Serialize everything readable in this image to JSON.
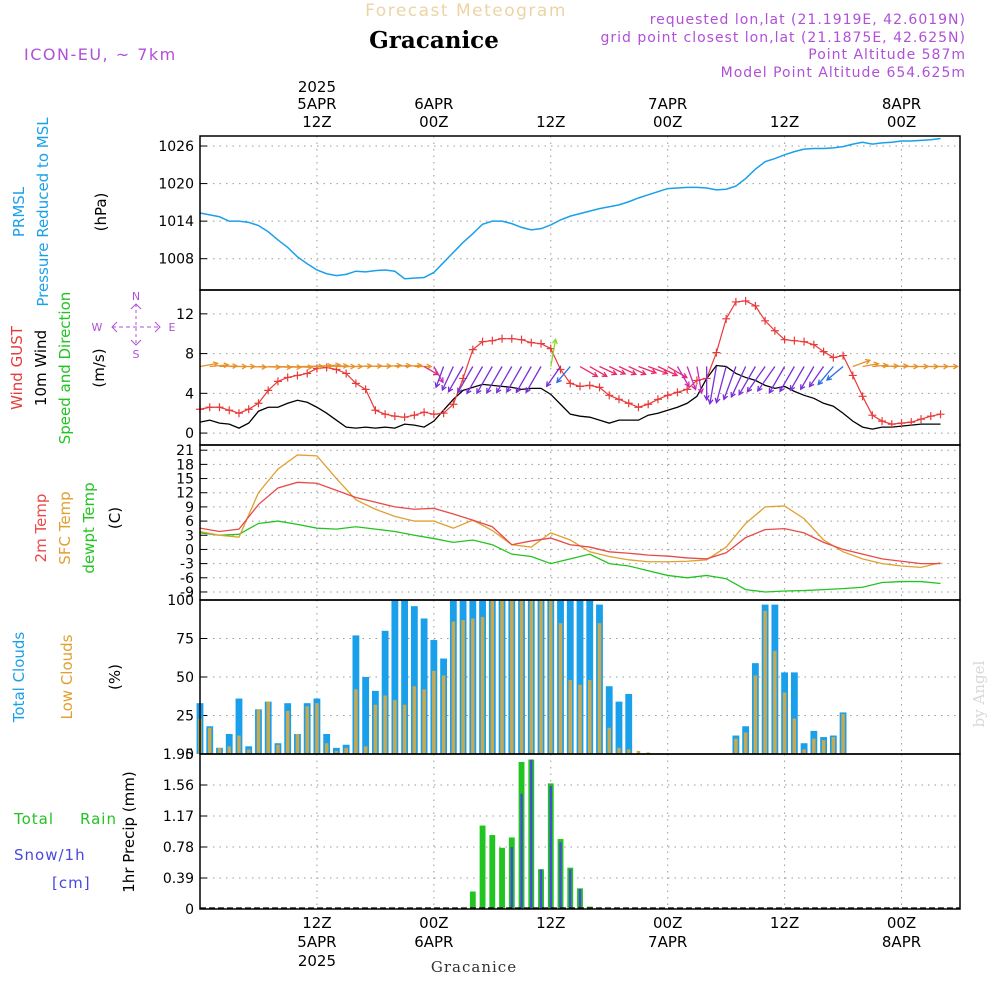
{
  "header": {
    "top_label": "Forecast Meteogram",
    "location": "Gracanice",
    "model": "ICON-EU, ~ 7km",
    "requested": "requested lon,lat (21.1919E, 42.6019N)",
    "grid_point": "grid point closest lon,lat (21.1875E, 42.625N)",
    "point_altitude": "Point Altitude 587m",
    "model_altitude": "Model Point Altitude 654.625m",
    "footer_location": "Gracanice",
    "watermark": "by Angel"
  },
  "colors": {
    "prmsl": "#1aa0ea",
    "gust": "#e83a3a",
    "wind": "#000000",
    "temp2m": "#e84a4a",
    "sfc": "#e0a030",
    "dewpt": "#22c422",
    "total_clouds": "#1aa0ea",
    "low_clouds": "#c8a850",
    "rain": "#22c422",
    "snow": "#4848e0",
    "purple": "#b050d8",
    "tan": "#e8c890"
  },
  "time_axis": {
    "top_year": "2025",
    "top_labels": [
      {
        "h": 12,
        "date": "5APR",
        "hour": "12Z"
      },
      {
        "h": 24,
        "date": "6APR",
        "hour": "00Z"
      },
      {
        "h": 36,
        "date": "",
        "hour": "12Z"
      },
      {
        "h": 48,
        "date": "7APR",
        "hour": "00Z"
      },
      {
        "h": 60,
        "date": "",
        "hour": "12Z"
      },
      {
        "h": 72,
        "date": "8APR",
        "hour": "00Z"
      }
    ],
    "bottom_labels": [
      {
        "h": 12,
        "hour": "12Z",
        "date": "5APR",
        "year": "2025"
      },
      {
        "h": 24,
        "hour": "00Z",
        "date": "6APR",
        "year": ""
      },
      {
        "h": 36,
        "hour": "12Z",
        "date": "",
        "year": ""
      },
      {
        "h": 48,
        "hour": "00Z",
        "date": "7APR",
        "year": ""
      },
      {
        "h": 60,
        "hour": "12Z",
        "date": "",
        "year": ""
      },
      {
        "h": 72,
        "hour": "00Z",
        "date": "8APR",
        "year": ""
      }
    ]
  },
  "chart_data": [
    {
      "id": "prmsl",
      "type": "line",
      "title": "PRMSL Pressure Reduced to MSL",
      "ylabel": "(hPa)",
      "legend": [
        "PRMSL",
        "Pressure Reduced to MSL"
      ],
      "ylim": [
        1003,
        1027.6
      ],
      "yticks": [
        1008,
        1014,
        1020,
        1026
      ],
      "x_hours": [
        0,
        2,
        3,
        4,
        5,
        6,
        7,
        8,
        9,
        10,
        11,
        12,
        13,
        14,
        15,
        16,
        17,
        18,
        19,
        20,
        21,
        22,
        23,
        24,
        25,
        26,
        27,
        28,
        29,
        30,
        31,
        32,
        33,
        34,
        35,
        36,
        37,
        38,
        39,
        40,
        41,
        42,
        43,
        44,
        45,
        46,
        47,
        48,
        49,
        50,
        51,
        52,
        53,
        54,
        55,
        56,
        57,
        58,
        59,
        60,
        61,
        62,
        63,
        64,
        65,
        66,
        67,
        68,
        69,
        70,
        71,
        72,
        73,
        74,
        75,
        76
      ],
      "values": [
        1015.3,
        1014.7,
        1014.0,
        1014.0,
        1013.8,
        1013.3,
        1012.3,
        1011.0,
        1009.8,
        1008.3,
        1007.2,
        1006.2,
        1005.6,
        1005.3,
        1005.5,
        1006.0,
        1005.9,
        1006.1,
        1006.2,
        1006.0,
        1004.8,
        1004.9,
        1005.0,
        1005.8,
        1007.4,
        1009.0,
        1010.6,
        1012.0,
        1013.5,
        1014.0,
        1014.0,
        1013.6,
        1013.0,
        1012.6,
        1012.8,
        1013.4,
        1014.2,
        1014.8,
        1015.2,
        1015.6,
        1016.0,
        1016.3,
        1016.6,
        1017.1,
        1017.7,
        1018.2,
        1018.7,
        1019.2,
        1019.3,
        1019.4,
        1019.4,
        1019.3,
        1019.0,
        1019.1,
        1019.6,
        1020.8,
        1022.3,
        1023.5,
        1024.0,
        1024.6,
        1025.1,
        1025.5,
        1025.6,
        1025.6,
        1025.7,
        1025.9,
        1026.3,
        1026.6,
        1026.3,
        1026.5,
        1026.6,
        1026.8,
        1026.8,
        1026.9,
        1027.0,
        1027.2
      ]
    },
    {
      "id": "wind",
      "type": "line",
      "title": "Wind GUST, 10m Wind Speed and Direction",
      "ylabel": "(m/s)",
      "legend": [
        "Wind GUST",
        "10m Wind",
        "Speed and Direction"
      ],
      "compass": {
        "n": "N",
        "s": "S",
        "w": "W",
        "e": "E"
      },
      "ylim": [
        -1.2,
        14.4
      ],
      "yticks": [
        0,
        4,
        8,
        12
      ],
      "x_hours": [
        0,
        1,
        2,
        3,
        4,
        5,
        6,
        7,
        8,
        9,
        10,
        11,
        12,
        13,
        14,
        15,
        16,
        17,
        18,
        19,
        20,
        21,
        22,
        23,
        24,
        25,
        26,
        27,
        28,
        29,
        30,
        31,
        32,
        33,
        34,
        35,
        36,
        37,
        38,
        39,
        40,
        41,
        42,
        43,
        44,
        45,
        46,
        47,
        48,
        49,
        50,
        51,
        52,
        53,
        54,
        55,
        56,
        57,
        58,
        59,
        60,
        61,
        62,
        63,
        64,
        65,
        66,
        67,
        68,
        69,
        70,
        71,
        72,
        73,
        74,
        75,
        76
      ],
      "gust": [
        2.4,
        2.6,
        2.6,
        2.3,
        2.0,
        2.4,
        3.0,
        4.3,
        5.2,
        5.6,
        5.8,
        6.0,
        6.5,
        6.6,
        6.4,
        6.0,
        5.0,
        4.4,
        2.3,
        1.9,
        1.7,
        1.6,
        1.8,
        2.1,
        1.9,
        2.0,
        2.9,
        5.5,
        8.4,
        9.2,
        9.3,
        9.5,
        9.5,
        9.4,
        9.1,
        9.0,
        8.5,
        6.4,
        5.0,
        4.7,
        4.8,
        4.6,
        3.8,
        3.4,
        3.0,
        2.6,
        2.9,
        3.4,
        3.8,
        4.1,
        4.4,
        5.3,
        5.5,
        8.1,
        11.5,
        13.2,
        13.3,
        12.8,
        11.3,
        10.3,
        9.4,
        9.3,
        9.2,
        8.9,
        8.2,
        7.6,
        7.8,
        5.8,
        3.7,
        1.8,
        1.2,
        0.9,
        1.0,
        1.1,
        1.4,
        1.7,
        1.9
      ],
      "speed": [
        1.1,
        1.3,
        1.0,
        0.9,
        0.5,
        1.0,
        2.2,
        2.6,
        2.6,
        3.0,
        3.3,
        3.1,
        2.6,
        2.0,
        1.3,
        0.6,
        0.5,
        0.6,
        0.5,
        0.6,
        0.5,
        0.9,
        0.8,
        0.6,
        1.2,
        2.3,
        3.4,
        4.3,
        4.6,
        4.9,
        4.8,
        4.7,
        4.6,
        4.4,
        4.5,
        4.5,
        3.9,
        2.9,
        1.9,
        1.7,
        1.6,
        1.3,
        1.0,
        1.3,
        1.3,
        1.3,
        1.8,
        2.0,
        2.3,
        2.6,
        3.0,
        3.7,
        5.5,
        6.8,
        6.7,
        6.0,
        5.6,
        5.3,
        4.8,
        4.5,
        4.7,
        4.2,
        3.8,
        3.5,
        3.0,
        2.7,
        2.0,
        1.2,
        0.6,
        0.4,
        0.6,
        0.6,
        0.7,
        0.8,
        0.9,
        0.9,
        0.9
      ],
      "dir_deg": [
        260,
        265,
        268,
        270,
        270,
        272,
        272,
        272,
        272,
        272,
        270,
        268,
        266,
        268,
        270,
        270,
        268,
        268,
        268,
        266,
        266,
        266,
        270,
        300,
        330,
        20,
        25,
        30,
        30,
        30,
        30,
        30,
        30,
        30,
        30,
        30,
        190,
        35,
        40,
        300,
        300,
        295,
        295,
        295,
        295,
        290,
        290,
        295,
        300,
        330,
        340,
        350,
        0,
        10,
        15,
        20,
        25,
        30,
        35,
        35,
        30,
        30,
        30,
        30,
        35,
        40,
        50,
        250,
        260,
        265,
        268,
        268,
        270,
        270,
        270,
        270,
        270
      ]
    },
    {
      "id": "temperature",
      "type": "line",
      "title": "2m Temp, SFC Temp, dewpt Temp",
      "ylabel": "(C)",
      "legend": [
        "2m Temp",
        "SFC Temp",
        "dewpt Temp"
      ],
      "ylim": [
        -10.7,
        22.1
      ],
      "yticks": [
        -9,
        -6,
        -3,
        0,
        3,
        6,
        9,
        12,
        15,
        18,
        21
      ],
      "x_hours": [
        0,
        2,
        4,
        6,
        8,
        10,
        12,
        14,
        16,
        18,
        20,
        22,
        24,
        26,
        28,
        30,
        32,
        34,
        36,
        38,
        40,
        42,
        44,
        46,
        48,
        50,
        52,
        54,
        56,
        58,
        60,
        62,
        64,
        66,
        68,
        70,
        72,
        74,
        76
      ],
      "temp2m": [
        4.5,
        3.8,
        4.3,
        9.5,
        13.0,
        14.2,
        14.0,
        12.5,
        11.0,
        10.0,
        9.0,
        8.5,
        8.7,
        7.5,
        6.2,
        4.8,
        1.0,
        1.8,
        2.4,
        1.0,
        0.5,
        -0.5,
        -0.8,
        -1.2,
        -1.4,
        -1.8,
        -2.0,
        -0.7,
        2.5,
        4.2,
        4.4,
        3.5,
        1.5,
        0.0,
        -1.0,
        -2.0,
        -2.5,
        -3.0,
        -3.0
      ],
      "sfc": [
        3.8,
        3.0,
        2.6,
        12.0,
        17.0,
        20.0,
        19.8,
        15.0,
        10.5,
        8.5,
        7.0,
        6.0,
        6.0,
        4.5,
        6.2,
        4.0,
        1.0,
        0.5,
        3.5,
        2.0,
        -0.5,
        -1.5,
        -2.2,
        -2.6,
        -2.6,
        -2.5,
        -2.2,
        0.5,
        5.5,
        9.0,
        9.2,
        6.5,
        2.0,
        -0.5,
        -2.0,
        -3.0,
        -3.5,
        -3.8,
        -2.8
      ],
      "dewpt": [
        3.5,
        3.0,
        3.2,
        5.5,
        6.0,
        5.3,
        4.5,
        4.3,
        4.8,
        4.3,
        3.8,
        3.0,
        2.3,
        1.5,
        2.0,
        1.0,
        -1.0,
        -1.5,
        -3.0,
        -2.0,
        -1.0,
        -3.0,
        -3.5,
        -4.5,
        -5.5,
        -6.0,
        -5.5,
        -6.2,
        -8.5,
        -9.0,
        -8.8,
        -8.7,
        -8.5,
        -8.3,
        -8.0,
        -7.0,
        -6.8,
        -6.8,
        -7.2
      ]
    },
    {
      "id": "clouds",
      "type": "bar",
      "title": "Total Clouds, Low Clouds",
      "ylabel": "(%)",
      "legend": [
        "Total Clouds",
        "Low Clouds"
      ],
      "ylim": [
        0,
        100
      ],
      "yticks": [
        0,
        25,
        50,
        75,
        100
      ],
      "x_hours": [
        0,
        1,
        2,
        3,
        4,
        5,
        6,
        7,
        8,
        9,
        10,
        11,
        12,
        13,
        14,
        15,
        16,
        17,
        18,
        19,
        20,
        21,
        22,
        23,
        24,
        25,
        26,
        27,
        28,
        29,
        30,
        31,
        32,
        33,
        34,
        35,
        36,
        37,
        38,
        39,
        40,
        41,
        42,
        43,
        44,
        45,
        46,
        47,
        48,
        49,
        50,
        51,
        52,
        53,
        54,
        55,
        56,
        57,
        58,
        59,
        60,
        61,
        62,
        63,
        64,
        65,
        66,
        67,
        68,
        69,
        70,
        71,
        72,
        73,
        74,
        75,
        76
      ],
      "total": [
        33,
        18,
        4,
        13,
        36,
        5,
        29,
        34,
        7,
        33,
        13,
        33,
        36,
        13,
        4,
        6,
        77,
        50,
        41,
        80,
        100,
        100,
        96,
        88,
        74,
        62,
        100,
        100,
        100,
        100,
        100,
        100,
        100,
        100,
        100,
        100,
        100,
        100,
        100,
        100,
        100,
        97,
        44,
        34,
        39,
        0,
        0,
        0,
        0,
        0,
        0,
        0,
        0,
        0,
        0,
        12,
        18,
        59,
        97,
        97,
        53,
        53,
        7,
        15,
        11,
        12,
        27,
        0,
        0,
        0,
        0,
        0,
        0,
        0,
        0,
        0,
        0
      ],
      "low": [
        23,
        17,
        4,
        5,
        12,
        3,
        29,
        34,
        6,
        28,
        13,
        31,
        33,
        7,
        2,
        4,
        42,
        5,
        32,
        38,
        35,
        32,
        44,
        42,
        54,
        51,
        86,
        87,
        88,
        89,
        100,
        100,
        100,
        100,
        100,
        100,
        100,
        85,
        48,
        45,
        48,
        85,
        17,
        4,
        3,
        2,
        1,
        0,
        0,
        0,
        0,
        0,
        0,
        0,
        0,
        10,
        14,
        51,
        93,
        67,
        40,
        23,
        3,
        10,
        9,
        11,
        26,
        0,
        0,
        0,
        0,
        0,
        0,
        0,
        0,
        0,
        0
      ]
    },
    {
      "id": "precip",
      "type": "bar",
      "title": "1hr Precip",
      "ylabel": "1hr Precip (mm)",
      "legend": [
        "Total",
        "Rain",
        "Snow/1h",
        "[cm]"
      ],
      "ylim": [
        0,
        1.95
      ],
      "yticks": [
        0,
        0.39,
        0.78,
        1.17,
        1.56,
        1.95
      ],
      "ytick_labels": [
        "0",
        "0.39",
        "0.78",
        "1.17",
        "1.56",
        "1.95"
      ],
      "x_hours": [
        0,
        1,
        2,
        3,
        4,
        5,
        6,
        7,
        8,
        9,
        10,
        11,
        12,
        13,
        14,
        15,
        16,
        17,
        18,
        19,
        20,
        21,
        22,
        23,
        24,
        25,
        26,
        27,
        28,
        29,
        30,
        31,
        32,
        33,
        34,
        35,
        36,
        37,
        38,
        39,
        40,
        41,
        42,
        43,
        44,
        45,
        46,
        47,
        48,
        49,
        50,
        51,
        52,
        53,
        54,
        55,
        56,
        57,
        58,
        59,
        60,
        61,
        62,
        63,
        64,
        65,
        66,
        67,
        68,
        69,
        70,
        71,
        72,
        73,
        74,
        75,
        76
      ],
      "total": [
        0,
        0,
        0,
        0,
        0,
        0,
        0,
        0,
        0,
        0,
        0,
        0,
        0,
        0,
        0,
        0,
        0,
        0,
        0,
        0,
        0,
        0,
        0,
        0,
        0,
        0,
        0,
        0,
        0.22,
        1.05,
        0.93,
        0.77,
        0.9,
        1.85,
        1.88,
        0.5,
        1.58,
        0.88,
        0.52,
        0.26,
        0.03,
        0,
        0,
        0,
        0,
        0,
        0,
        0,
        0,
        0,
        0,
        0,
        0,
        0,
        0,
        0,
        0,
        0,
        0,
        0,
        0,
        0,
        0,
        0,
        0,
        0,
        0,
        0,
        0,
        0,
        0,
        0,
        0,
        0,
        0,
        0,
        0
      ],
      "snow": [
        0,
        0,
        0,
        0,
        0,
        0,
        0,
        0,
        0,
        0,
        0,
        0,
        0,
        0,
        0,
        0,
        0,
        0,
        0,
        0,
        0,
        0,
        0,
        0,
        0,
        0,
        0,
        0,
        0,
        0,
        0,
        0,
        0.78,
        1.45,
        1.88,
        0.5,
        1.55,
        0.84,
        0.5,
        0.25,
        0,
        0,
        0,
        0,
        0,
        0,
        0,
        0,
        0,
        0,
        0,
        0,
        0,
        0,
        0,
        0,
        0,
        0,
        0,
        0,
        0,
        0,
        0,
        0,
        0,
        0,
        0,
        0,
        0,
        0,
        0,
        0,
        0,
        0,
        0,
        0,
        0
      ]
    }
  ]
}
